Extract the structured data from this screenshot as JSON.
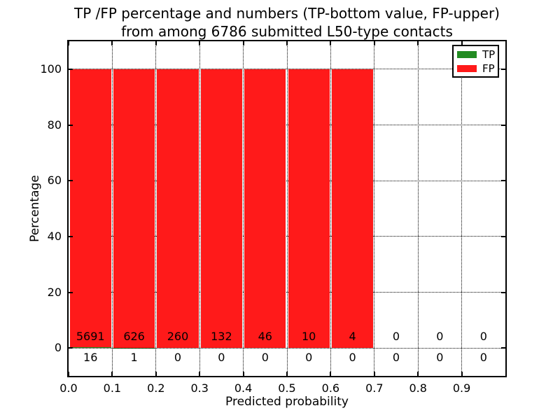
{
  "title": {
    "line1": "TP /FP percentage and numbers (TP-bottom value, FP-upper)",
    "line2": "from among 6786 submitted L50-type contacts"
  },
  "colors": {
    "tp": "#228b22",
    "fp": "#ff1a1a",
    "text": "#000000",
    "background": "#ffffff"
  },
  "legend": {
    "entries": [
      {
        "label": "TP",
        "color": "#228b22"
      },
      {
        "label": "FP",
        "color": "#ff1a1a"
      }
    ],
    "position": "upper right"
  },
  "chart_data": {
    "type": "bar",
    "stacked": true,
    "title": "TP /FP percentage and numbers (TP-bottom value, FP-upper) from among 6786 submitted L50-type contacts",
    "xlabel": "Predicted probability",
    "ylabel": "Percentage",
    "xlim": [
      0.0,
      1.0
    ],
    "ylim": [
      -10,
      110
    ],
    "xticks": [
      0.0,
      0.1,
      0.2,
      0.3,
      0.4,
      0.5,
      0.6,
      0.7,
      0.8,
      0.9
    ],
    "yticks": [
      0,
      20,
      40,
      60,
      80,
      100
    ],
    "grid": "dotted",
    "legend_position": "upper right",
    "bin_width": 0.1,
    "bin_starts": [
      0.0,
      0.1,
      0.2,
      0.3,
      0.4,
      0.5,
      0.6,
      0.7,
      0.8,
      0.9
    ],
    "series": [
      {
        "name": "TP",
        "color": "#228b22",
        "counts": [
          16,
          1,
          0,
          0,
          0,
          0,
          0,
          0,
          0,
          0
        ]
      },
      {
        "name": "FP",
        "color": "#ff1a1a",
        "counts": [
          5691,
          626,
          260,
          132,
          46,
          10,
          4,
          0,
          0,
          0
        ]
      }
    ],
    "bar_total_pct": [
      100,
      100,
      100,
      100,
      100,
      100,
      100,
      0,
      0,
      0
    ]
  }
}
